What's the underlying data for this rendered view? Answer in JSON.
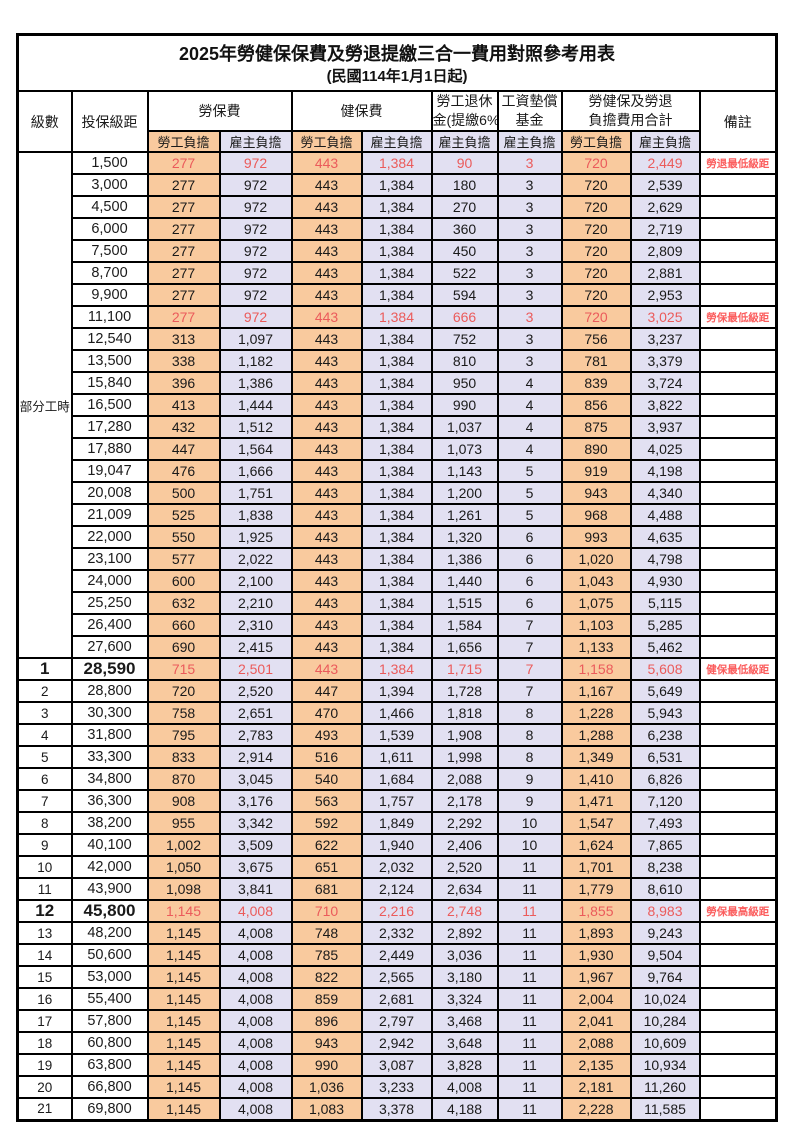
{
  "page": {
    "title_line1": "2025年勞健保保費及勞退提繳三合一費用對照參考用表",
    "title_line2": "(民國114年1月1日起)"
  },
  "header": {
    "level": "級數",
    "bracket": "投保級距",
    "labor_insurance": "勞保費",
    "health_insurance": "健保費",
    "pension_line1": "勞工退休",
    "pension_line2": "金(提繳6%)",
    "wage_fund_line1": "工資墊償",
    "wage_fund_line2": "基金",
    "total_line1": "勞健保及勞退",
    "total_line2": "負擔費用合計",
    "remarks": "備註",
    "employee_burden": "勞工負擔",
    "employer_burden": "雇主負擔"
  },
  "part_time_label": "部分工時",
  "part_time_row_count": 23,
  "colors": {
    "employee_bg": "#F9CA9E",
    "employer_bg": "#E2E0F2",
    "highlight_red": "#EB5B5B",
    "note_red": "#FB5E5E"
  },
  "rows": [
    {
      "level": "",
      "bracket": "1,500",
      "labor_emp": "277",
      "labor_er": "972",
      "health_emp": "443",
      "health_er": "1,384",
      "pension_er": "90",
      "fund_er": "3",
      "total_emp": "720",
      "total_er": "2,449",
      "note": "勞退最低級距",
      "red": true,
      "big": false
    },
    {
      "level": "",
      "bracket": "3,000",
      "labor_emp": "277",
      "labor_er": "972",
      "health_emp": "443",
      "health_er": "1,384",
      "pension_er": "180",
      "fund_er": "3",
      "total_emp": "720",
      "total_er": "2,539",
      "note": "",
      "red": false,
      "big": false
    },
    {
      "level": "",
      "bracket": "4,500",
      "labor_emp": "277",
      "labor_er": "972",
      "health_emp": "443",
      "health_er": "1,384",
      "pension_er": "270",
      "fund_er": "3",
      "total_emp": "720",
      "total_er": "2,629",
      "note": "",
      "red": false,
      "big": false
    },
    {
      "level": "",
      "bracket": "6,000",
      "labor_emp": "277",
      "labor_er": "972",
      "health_emp": "443",
      "health_er": "1,384",
      "pension_er": "360",
      "fund_er": "3",
      "total_emp": "720",
      "total_er": "2,719",
      "note": "",
      "red": false,
      "big": false
    },
    {
      "level": "",
      "bracket": "7,500",
      "labor_emp": "277",
      "labor_er": "972",
      "health_emp": "443",
      "health_er": "1,384",
      "pension_er": "450",
      "fund_er": "3",
      "total_emp": "720",
      "total_er": "2,809",
      "note": "",
      "red": false,
      "big": false
    },
    {
      "level": "",
      "bracket": "8,700",
      "labor_emp": "277",
      "labor_er": "972",
      "health_emp": "443",
      "health_er": "1,384",
      "pension_er": "522",
      "fund_er": "3",
      "total_emp": "720",
      "total_er": "2,881",
      "note": "",
      "red": false,
      "big": false
    },
    {
      "level": "",
      "bracket": "9,900",
      "labor_emp": "277",
      "labor_er": "972",
      "health_emp": "443",
      "health_er": "1,384",
      "pension_er": "594",
      "fund_er": "3",
      "total_emp": "720",
      "total_er": "2,953",
      "note": "",
      "red": false,
      "big": false
    },
    {
      "level": "",
      "bracket": "11,100",
      "labor_emp": "277",
      "labor_er": "972",
      "health_emp": "443",
      "health_er": "1,384",
      "pension_er": "666",
      "fund_er": "3",
      "total_emp": "720",
      "total_er": "3,025",
      "note": "勞保最低級距",
      "red": true,
      "big": false
    },
    {
      "level": "",
      "bracket": "12,540",
      "labor_emp": "313",
      "labor_er": "1,097",
      "health_emp": "443",
      "health_er": "1,384",
      "pension_er": "752",
      "fund_er": "3",
      "total_emp": "756",
      "total_er": "3,237",
      "note": "",
      "red": false,
      "big": false
    },
    {
      "level": "",
      "bracket": "13,500",
      "labor_emp": "338",
      "labor_er": "1,182",
      "health_emp": "443",
      "health_er": "1,384",
      "pension_er": "810",
      "fund_er": "3",
      "total_emp": "781",
      "total_er": "3,379",
      "note": "",
      "red": false,
      "big": false
    },
    {
      "level": "",
      "bracket": "15,840",
      "labor_emp": "396",
      "labor_er": "1,386",
      "health_emp": "443",
      "health_er": "1,384",
      "pension_er": "950",
      "fund_er": "4",
      "total_emp": "839",
      "total_er": "3,724",
      "note": "",
      "red": false,
      "big": false
    },
    {
      "level": "",
      "bracket": "16,500",
      "labor_emp": "413",
      "labor_er": "1,444",
      "health_emp": "443",
      "health_er": "1,384",
      "pension_er": "990",
      "fund_er": "4",
      "total_emp": "856",
      "total_er": "3,822",
      "note": "",
      "red": false,
      "big": false
    },
    {
      "level": "",
      "bracket": "17,280",
      "labor_emp": "432",
      "labor_er": "1,512",
      "health_emp": "443",
      "health_er": "1,384",
      "pension_er": "1,037",
      "fund_er": "4",
      "total_emp": "875",
      "total_er": "3,937",
      "note": "",
      "red": false,
      "big": false
    },
    {
      "level": "",
      "bracket": "17,880",
      "labor_emp": "447",
      "labor_er": "1,564",
      "health_emp": "443",
      "health_er": "1,384",
      "pension_er": "1,073",
      "fund_er": "4",
      "total_emp": "890",
      "total_er": "4,025",
      "note": "",
      "red": false,
      "big": false
    },
    {
      "level": "",
      "bracket": "19,047",
      "labor_emp": "476",
      "labor_er": "1,666",
      "health_emp": "443",
      "health_er": "1,384",
      "pension_er": "1,143",
      "fund_er": "5",
      "total_emp": "919",
      "total_er": "4,198",
      "note": "",
      "red": false,
      "big": false
    },
    {
      "level": "",
      "bracket": "20,008",
      "labor_emp": "500",
      "labor_er": "1,751",
      "health_emp": "443",
      "health_er": "1,384",
      "pension_er": "1,200",
      "fund_er": "5",
      "total_emp": "943",
      "total_er": "4,340",
      "note": "",
      "red": false,
      "big": false
    },
    {
      "level": "",
      "bracket": "21,009",
      "labor_emp": "525",
      "labor_er": "1,838",
      "health_emp": "443",
      "health_er": "1,384",
      "pension_er": "1,261",
      "fund_er": "5",
      "total_emp": "968",
      "total_er": "4,488",
      "note": "",
      "red": false,
      "big": false
    },
    {
      "level": "",
      "bracket": "22,000",
      "labor_emp": "550",
      "labor_er": "1,925",
      "health_emp": "443",
      "health_er": "1,384",
      "pension_er": "1,320",
      "fund_er": "6",
      "total_emp": "993",
      "total_er": "4,635",
      "note": "",
      "red": false,
      "big": false
    },
    {
      "level": "",
      "bracket": "23,100",
      "labor_emp": "577",
      "labor_er": "2,022",
      "health_emp": "443",
      "health_er": "1,384",
      "pension_er": "1,386",
      "fund_er": "6",
      "total_emp": "1,020",
      "total_er": "4,798",
      "note": "",
      "red": false,
      "big": false
    },
    {
      "level": "",
      "bracket": "24,000",
      "labor_emp": "600",
      "labor_er": "2,100",
      "health_emp": "443",
      "health_er": "1,384",
      "pension_er": "1,440",
      "fund_er": "6",
      "total_emp": "1,043",
      "total_er": "4,930",
      "note": "",
      "red": false,
      "big": false
    },
    {
      "level": "",
      "bracket": "25,250",
      "labor_emp": "632",
      "labor_er": "2,210",
      "health_emp": "443",
      "health_er": "1,384",
      "pension_er": "1,515",
      "fund_er": "6",
      "total_emp": "1,075",
      "total_er": "5,115",
      "note": "",
      "red": false,
      "big": false
    },
    {
      "level": "",
      "bracket": "26,400",
      "labor_emp": "660",
      "labor_er": "2,310",
      "health_emp": "443",
      "health_er": "1,384",
      "pension_er": "1,584",
      "fund_er": "7",
      "total_emp": "1,103",
      "total_er": "5,285",
      "note": "",
      "red": false,
      "big": false
    },
    {
      "level": "",
      "bracket": "27,600",
      "labor_emp": "690",
      "labor_er": "2,415",
      "health_emp": "443",
      "health_er": "1,384",
      "pension_er": "1,656",
      "fund_er": "7",
      "total_emp": "1,133",
      "total_er": "5,462",
      "note": "",
      "red": false,
      "big": false
    },
    {
      "level": "1",
      "bracket": "28,590",
      "labor_emp": "715",
      "labor_er": "2,501",
      "health_emp": "443",
      "health_er": "1,384",
      "pension_er": "1,715",
      "fund_er": "7",
      "total_emp": "1,158",
      "total_er": "5,608",
      "note": "健保最低級距",
      "red": true,
      "big": true
    },
    {
      "level": "2",
      "bracket": "28,800",
      "labor_emp": "720",
      "labor_er": "2,520",
      "health_emp": "447",
      "health_er": "1,394",
      "pension_er": "1,728",
      "fund_er": "7",
      "total_emp": "1,167",
      "total_er": "5,649",
      "note": "",
      "red": false,
      "big": false
    },
    {
      "level": "3",
      "bracket": "30,300",
      "labor_emp": "758",
      "labor_er": "2,651",
      "health_emp": "470",
      "health_er": "1,466",
      "pension_er": "1,818",
      "fund_er": "8",
      "total_emp": "1,228",
      "total_er": "5,943",
      "note": "",
      "red": false,
      "big": false
    },
    {
      "level": "4",
      "bracket": "31,800",
      "labor_emp": "795",
      "labor_er": "2,783",
      "health_emp": "493",
      "health_er": "1,539",
      "pension_er": "1,908",
      "fund_er": "8",
      "total_emp": "1,288",
      "total_er": "6,238",
      "note": "",
      "red": false,
      "big": false
    },
    {
      "level": "5",
      "bracket": "33,300",
      "labor_emp": "833",
      "labor_er": "2,914",
      "health_emp": "516",
      "health_er": "1,611",
      "pension_er": "1,998",
      "fund_er": "8",
      "total_emp": "1,349",
      "total_er": "6,531",
      "note": "",
      "red": false,
      "big": false
    },
    {
      "level": "6",
      "bracket": "34,800",
      "labor_emp": "870",
      "labor_er": "3,045",
      "health_emp": "540",
      "health_er": "1,684",
      "pension_er": "2,088",
      "fund_er": "9",
      "total_emp": "1,410",
      "total_er": "6,826",
      "note": "",
      "red": false,
      "big": false
    },
    {
      "level": "7",
      "bracket": "36,300",
      "labor_emp": "908",
      "labor_er": "3,176",
      "health_emp": "563",
      "health_er": "1,757",
      "pension_er": "2,178",
      "fund_er": "9",
      "total_emp": "1,471",
      "total_er": "7,120",
      "note": "",
      "red": false,
      "big": false
    },
    {
      "level": "8",
      "bracket": "38,200",
      "labor_emp": "955",
      "labor_er": "3,342",
      "health_emp": "592",
      "health_er": "1,849",
      "pension_er": "2,292",
      "fund_er": "10",
      "total_emp": "1,547",
      "total_er": "7,493",
      "note": "",
      "red": false,
      "big": false
    },
    {
      "level": "9",
      "bracket": "40,100",
      "labor_emp": "1,002",
      "labor_er": "3,509",
      "health_emp": "622",
      "health_er": "1,940",
      "pension_er": "2,406",
      "fund_er": "10",
      "total_emp": "1,624",
      "total_er": "7,865",
      "note": "",
      "red": false,
      "big": false
    },
    {
      "level": "10",
      "bracket": "42,000",
      "labor_emp": "1,050",
      "labor_er": "3,675",
      "health_emp": "651",
      "health_er": "2,032",
      "pension_er": "2,520",
      "fund_er": "11",
      "total_emp": "1,701",
      "total_er": "8,238",
      "note": "",
      "red": false,
      "big": false
    },
    {
      "level": "11",
      "bracket": "43,900",
      "labor_emp": "1,098",
      "labor_er": "3,841",
      "health_emp": "681",
      "health_er": "2,124",
      "pension_er": "2,634",
      "fund_er": "11",
      "total_emp": "1,779",
      "total_er": "8,610",
      "note": "",
      "red": false,
      "big": false
    },
    {
      "level": "12",
      "bracket": "45,800",
      "labor_emp": "1,145",
      "labor_er": "4,008",
      "health_emp": "710",
      "health_er": "2,216",
      "pension_er": "2,748",
      "fund_er": "11",
      "total_emp": "1,855",
      "total_er": "8,983",
      "note": "勞保最高級距",
      "red": true,
      "big": true
    },
    {
      "level": "13",
      "bracket": "48,200",
      "labor_emp": "1,145",
      "labor_er": "4,008",
      "health_emp": "748",
      "health_er": "2,332",
      "pension_er": "2,892",
      "fund_er": "11",
      "total_emp": "1,893",
      "total_er": "9,243",
      "note": "",
      "red": false,
      "big": false
    },
    {
      "level": "14",
      "bracket": "50,600",
      "labor_emp": "1,145",
      "labor_er": "4,008",
      "health_emp": "785",
      "health_er": "2,449",
      "pension_er": "3,036",
      "fund_er": "11",
      "total_emp": "1,930",
      "total_er": "9,504",
      "note": "",
      "red": false,
      "big": false
    },
    {
      "level": "15",
      "bracket": "53,000",
      "labor_emp": "1,145",
      "labor_er": "4,008",
      "health_emp": "822",
      "health_er": "2,565",
      "pension_er": "3,180",
      "fund_er": "11",
      "total_emp": "1,967",
      "total_er": "9,764",
      "note": "",
      "red": false,
      "big": false
    },
    {
      "level": "16",
      "bracket": "55,400",
      "labor_emp": "1,145",
      "labor_er": "4,008",
      "health_emp": "859",
      "health_er": "2,681",
      "pension_er": "3,324",
      "fund_er": "11",
      "total_emp": "2,004",
      "total_er": "10,024",
      "note": "",
      "red": false,
      "big": false
    },
    {
      "level": "17",
      "bracket": "57,800",
      "labor_emp": "1,145",
      "labor_er": "4,008",
      "health_emp": "896",
      "health_er": "2,797",
      "pension_er": "3,468",
      "fund_er": "11",
      "total_emp": "2,041",
      "total_er": "10,284",
      "note": "",
      "red": false,
      "big": false
    },
    {
      "level": "18",
      "bracket": "60,800",
      "labor_emp": "1,145",
      "labor_er": "4,008",
      "health_emp": "943",
      "health_er": "2,942",
      "pension_er": "3,648",
      "fund_er": "11",
      "total_emp": "2,088",
      "total_er": "10,609",
      "note": "",
      "red": false,
      "big": false
    },
    {
      "level": "19",
      "bracket": "63,800",
      "labor_emp": "1,145",
      "labor_er": "4,008",
      "health_emp": "990",
      "health_er": "3,087",
      "pension_er": "3,828",
      "fund_er": "11",
      "total_emp": "2,135",
      "total_er": "10,934",
      "note": "",
      "red": false,
      "big": false
    },
    {
      "level": "20",
      "bracket": "66,800",
      "labor_emp": "1,145",
      "labor_er": "4,008",
      "health_emp": "1,036",
      "health_er": "3,233",
      "pension_er": "4,008",
      "fund_er": "11",
      "total_emp": "2,181",
      "total_er": "11,260",
      "note": "",
      "red": false,
      "big": false
    },
    {
      "level": "21",
      "bracket": "69,800",
      "labor_emp": "1,145",
      "labor_er": "4,008",
      "health_emp": "1,083",
      "health_er": "3,378",
      "pension_er": "4,188",
      "fund_er": "11",
      "total_emp": "2,228",
      "total_er": "11,585",
      "note": "",
      "red": false,
      "big": false
    }
  ]
}
